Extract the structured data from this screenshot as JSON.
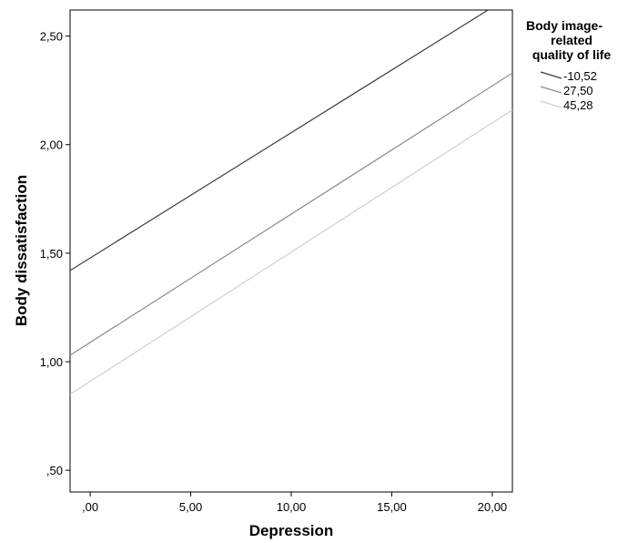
{
  "chart_data": {
    "type": "line",
    "xlabel": "Depression",
    "ylabel": "Body dissatisfaction",
    "xlim": [
      -1.0,
      21.0
    ],
    "ylim": [
      0.4,
      2.62
    ],
    "x_ticks": [
      0,
      5,
      10,
      15,
      20
    ],
    "x_tick_labels": [
      ",00",
      "5,00",
      "10,00",
      "15,00",
      "20,00"
    ],
    "y_ticks": [
      0.5,
      1.0,
      1.5,
      2.0,
      2.5
    ],
    "y_tick_labels": [
      ",50",
      "1,00",
      "1,50",
      "2,00",
      "2,50"
    ],
    "grid": false,
    "legend": {
      "title_lines": [
        "Body image-",
        "related",
        "quality of life"
      ],
      "placement": "right"
    },
    "series": [
      {
        "name": "-10,52",
        "color": "#3a3a3a",
        "x": [
          -1.0,
          21.0
        ],
        "y": [
          1.42,
          2.69
        ]
      },
      {
        "name": "27,50",
        "color": "#8a8a8a",
        "x": [
          -1.0,
          21.0
        ],
        "y": [
          1.03,
          2.33
        ]
      },
      {
        "name": "45,28",
        "color": "#cfcfcf",
        "x": [
          -1.0,
          21.0
        ],
        "y": [
          0.85,
          2.16
        ]
      }
    ]
  }
}
